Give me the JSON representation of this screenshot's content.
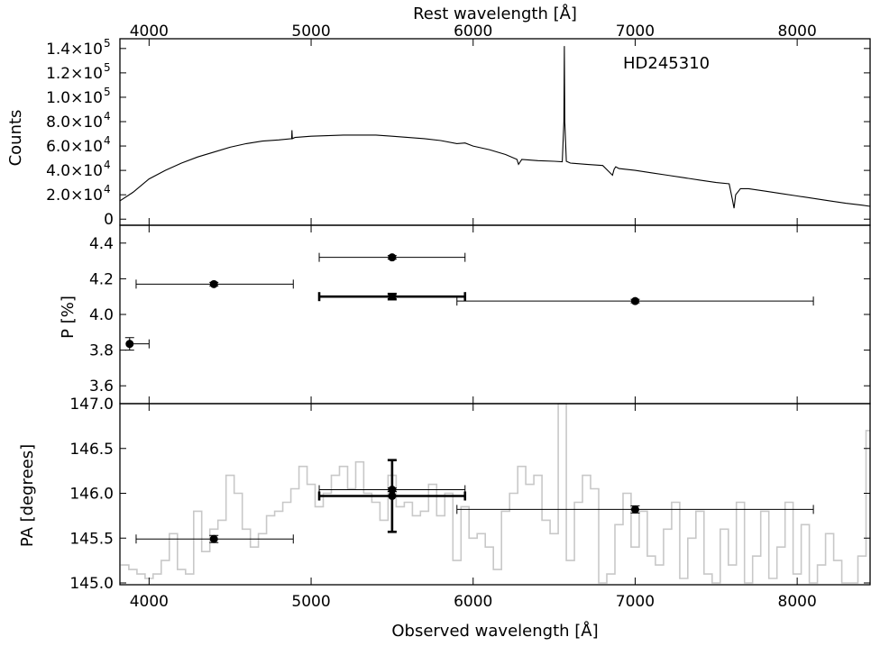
{
  "figure": {
    "top_axis_label": "Rest wavelength [Å]",
    "bottom_axis_label": "Observed wavelength [Å]",
    "x_range": [
      3820,
      8450
    ],
    "x_ticks": [
      "4000",
      "5000",
      "6000",
      "7000",
      "8000"
    ],
    "x_tick_values": [
      4000,
      5000,
      6000,
      7000,
      8000
    ]
  },
  "chart_data": [
    {
      "type": "line",
      "panel": "spectrum",
      "ylabel": "Counts",
      "annotation": "HD245310",
      "ylim": [
        -5000,
        148000
      ],
      "y_ticks": [
        {
          "value": 0,
          "mantissa": "0",
          "exp": ""
        },
        {
          "value": 20000,
          "mantissa": "2.0×10",
          "exp": "4"
        },
        {
          "value": 40000,
          "mantissa": "4.0×10",
          "exp": "4"
        },
        {
          "value": 60000,
          "mantissa": "6.0×10",
          "exp": "4"
        },
        {
          "value": 80000,
          "mantissa": "8.0×10",
          "exp": "4"
        },
        {
          "value": 100000,
          "mantissa": "1.0×10",
          "exp": "5"
        },
        {
          "value": 120000,
          "mantissa": "1.2×10",
          "exp": "5"
        },
        {
          "value": 140000,
          "mantissa": "1.4×10",
          "exp": "5"
        }
      ],
      "x": [
        3820,
        3900,
        4000,
        4100,
        4200,
        4300,
        4400,
        4500,
        4600,
        4700,
        4800,
        4880,
        4882,
        4884,
        4900,
        5000,
        5100,
        5200,
        5300,
        5400,
        5500,
        5600,
        5700,
        5800,
        5900,
        5950,
        6000,
        6100,
        6200,
        6270,
        6280,
        6300,
        6400,
        6500,
        6550,
        6560,
        6563,
        6566,
        6575,
        6600,
        6700,
        6800,
        6860,
        6870,
        6880,
        6900,
        7000,
        7100,
        7200,
        7300,
        7400,
        7500,
        7580,
        7600,
        7610,
        7620,
        7650,
        7700,
        7800,
        7900,
        8000,
        8100,
        8200,
        8300,
        8400,
        8450
      ],
      "values": [
        15000,
        22000,
        33000,
        40000,
        46000,
        51000,
        55000,
        59000,
        62000,
        64000,
        65000,
        66000,
        73000,
        66000,
        67000,
        68000,
        68500,
        69000,
        69000,
        69000,
        68000,
        67000,
        66000,
        64500,
        62000,
        62500,
        60000,
        57000,
        53000,
        49000,
        45000,
        49000,
        48000,
        47500,
        47000,
        80000,
        142000,
        80000,
        47500,
        46000,
        45000,
        44000,
        36000,
        41000,
        43000,
        41500,
        40000,
        38000,
        36000,
        34000,
        32000,
        30000,
        29000,
        16000,
        9000,
        20000,
        25000,
        25000,
        23000,
        21000,
        19000,
        17000,
        15000,
        13000,
        11500,
        10500
      ]
    },
    {
      "type": "scatter",
      "panel": "polarization",
      "ylabel": "P [%]",
      "ylim": [
        3.5,
        4.5
      ],
      "y_ticks": [
        "3.6",
        "3.8",
        "4.0",
        "4.2",
        "4.4"
      ],
      "y_tick_values": [
        3.6,
        3.8,
        4.0,
        4.2,
        4.4
      ],
      "series": [
        {
          "name": "",
          "style": "thin",
          "points": [
            {
              "x": 3880,
              "y": 3.835,
              "xerr": [
                3880,
                4000
              ],
              "yerr": 0.035
            },
            {
              "x": 4400,
              "y": 4.17,
              "xerr": [
                3920,
                4890
              ],
              "yerr": 0.01
            },
            {
              "x": 5500,
              "y": 4.32,
              "xerr": [
                5050,
                5950
              ],
              "yerr": 0.01
            },
            {
              "x": 7000,
              "y": 4.075,
              "xerr": [
                5900,
                8100
              ],
              "yerr": 0.01
            }
          ]
        },
        {
          "name": "",
          "style": "thick",
          "points": [
            {
              "x": 5500,
              "y": 4.1,
              "xerr": [
                5050,
                5950
              ],
              "yerr": 0.015
            }
          ]
        }
      ]
    },
    {
      "type": "scatter",
      "panel": "position_angle",
      "ylabel": "PA [degrees]",
      "ylim": [
        144.98,
        147.0
      ],
      "y_ticks": [
        "145.0",
        "145.5",
        "146.0",
        "146.5",
        "147.0"
      ],
      "y_tick_values": [
        145.0,
        145.5,
        146.0,
        146.5,
        147.0
      ],
      "step_background": {
        "bin_width": 50,
        "x_start": 3825,
        "values": [
          145.2,
          145.15,
          145.1,
          145.05,
          145.1,
          145.25,
          145.55,
          145.15,
          145.1,
          145.8,
          145.35,
          145.6,
          145.7,
          146.2,
          146.0,
          145.6,
          145.4,
          145.55,
          145.75,
          145.8,
          145.9,
          146.05,
          146.3,
          146.1,
          145.85,
          146.0,
          146.2,
          146.3,
          146.05,
          146.35,
          146.0,
          145.9,
          145.7,
          146.2,
          145.85,
          145.9,
          145.75,
          145.8,
          146.1,
          145.75,
          146.0,
          145.25,
          145.85,
          145.5,
          145.55,
          145.4,
          145.15,
          145.8,
          146.0,
          146.3,
          146.1,
          146.2,
          145.7,
          145.55,
          147.0,
          145.25,
          145.9,
          146.2,
          146.05,
          145.0,
          145.1,
          145.65,
          146.0,
          145.4,
          145.8,
          145.3,
          145.2,
          145.6,
          145.9,
          145.05,
          145.5,
          145.8,
          145.1,
          145.0,
          145.6,
          145.2,
          145.9,
          145.0,
          145.3,
          145.8,
          145.05,
          145.4,
          145.9,
          145.1,
          145.65,
          145.0,
          145.2,
          145.55,
          145.25,
          145.0,
          145.0,
          145.3,
          146.7
        ]
      },
      "series": [
        {
          "name": "",
          "style": "thin",
          "points": [
            {
              "x": 4400,
              "y": 145.49,
              "xerr": [
                3920,
                4890
              ],
              "yerr": 0.04
            },
            {
              "x": 5500,
              "y": 146.04,
              "xerr": [
                5050,
                5950
              ],
              "yerr": 0.02
            },
            {
              "x": 7000,
              "y": 145.82,
              "xerr": [
                5900,
                8100
              ],
              "yerr": 0.04
            }
          ]
        },
        {
          "name": "",
          "style": "thick",
          "points": [
            {
              "x": 5500,
              "y": 145.97,
              "xerr": [
                5050,
                5950
              ],
              "yerr": 0.4
            }
          ]
        }
      ]
    }
  ]
}
